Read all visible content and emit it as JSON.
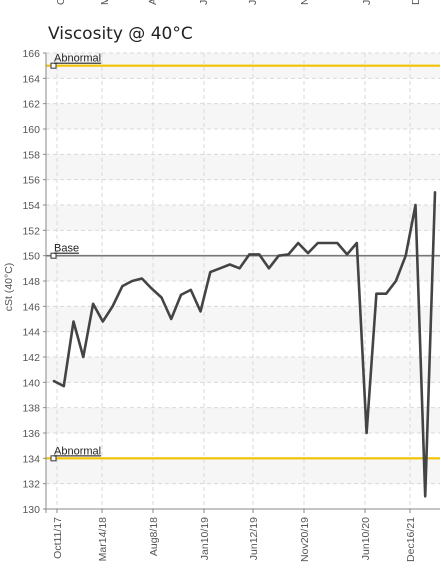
{
  "chart_data": {
    "type": "line",
    "title": "Viscosity @ 40°C",
    "ylabel": "cSt (40°C)",
    "xlabel": "",
    "ylim": [
      130,
      166
    ],
    "y_ticks": [
      130,
      132,
      134,
      136,
      138,
      140,
      142,
      144,
      146,
      148,
      150,
      152,
      154,
      156,
      158,
      160,
      162,
      164,
      166
    ],
    "x_tick_labels": [
      "Oct11/17",
      "Mar14/18",
      "Aug8/18",
      "Jan10/19",
      "Jun12/19",
      "Nov20/19",
      "Jun10/20",
      "Dec16/21"
    ],
    "top_cutoff_labels": [
      "O",
      "M",
      "A",
      "J",
      "J",
      "N",
      "J",
      "D"
    ],
    "grid": true,
    "reference_lines": [
      {
        "label": "Abnormal",
        "value": 165,
        "color": "#f2c200"
      },
      {
        "label": "Base",
        "value": 150,
        "color": "#777777"
      },
      {
        "label": "Abnormal",
        "value": 134,
        "color": "#f2c200"
      }
    ],
    "series": [
      {
        "color": "#444444",
        "values": [
          140.1,
          139.7,
          144.8,
          142.0,
          146.2,
          144.8,
          146.0,
          147.6,
          148.0,
          148.2,
          147.4,
          146.7,
          145.0,
          146.9,
          147.3,
          145.6,
          148.7,
          149.0,
          149.3,
          149.0,
          150.1,
          150.1,
          149.0,
          150.0,
          150.1,
          151.0,
          150.2,
          151.0,
          151.0,
          151.0,
          150.1,
          151.0,
          136.0,
          147.0,
          147.0,
          148.0,
          150.0,
          154.0,
          131.0,
          155.0
        ]
      }
    ]
  }
}
